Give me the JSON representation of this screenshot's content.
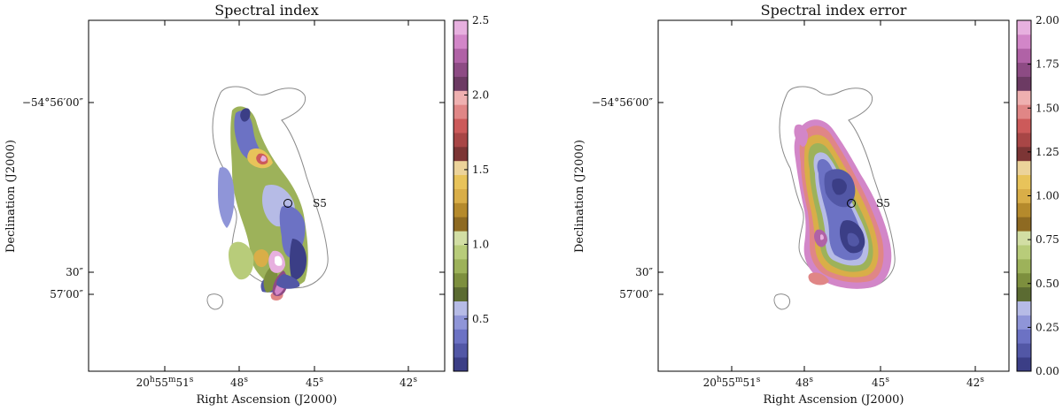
{
  "colors": {
    "levels": [
      "#3b3e86",
      "#5257a6",
      "#6c72c4",
      "#8f95d8",
      "#b6bbe6",
      "#5b6b32",
      "#7d8f3e",
      "#9db25a",
      "#b8cc7a",
      "#d2dea4",
      "#8e6a22",
      "#b58a2c",
      "#d9ae48",
      "#e8c35a",
      "#ecd39a",
      "#7c3535",
      "#a84646",
      "#cc5a5a",
      "#e08686",
      "#efb0b0",
      "#6c3a63",
      "#8d4b84",
      "#b062a6",
      "#d286c8",
      "#e7b0df"
    ],
    "contour": "#8a8a8a",
    "marker": "#000000"
  },
  "chart_data": [
    {
      "type": "heatmap",
      "title": "Spectral index",
      "xlabel": "Right Ascension (J2000)",
      "ylabel": "Declination (J2000)",
      "x_ticks": [
        "20h55m51s",
        "48s",
        "45s",
        "42s"
      ],
      "y_ticks": [
        "−54°56′00″",
        "30″",
        "57′00″"
      ],
      "colorbar": {
        "min": 0.15,
        "max": 2.5,
        "ticks": [
          "0.5",
          "1.0",
          "1.5",
          "2.0",
          "2.5"
        ],
        "tick_values": [
          0.5,
          1.0,
          1.5,
          2.0,
          2.5
        ]
      },
      "annotations": [
        {
          "text": "S5"
        }
      ]
    },
    {
      "type": "heatmap",
      "title": "Spectral index error",
      "xlabel": "Right Ascension (J2000)",
      "ylabel": "Declination (J2000)",
      "x_ticks": [
        "20h55m51s",
        "48s",
        "45s",
        "42s"
      ],
      "y_ticks": [
        "−54°56′00″",
        "30″",
        "57′00″"
      ],
      "colorbar": {
        "min": 0.0,
        "max": 2.0,
        "ticks": [
          "0.00",
          "0.25",
          "0.50",
          "0.75",
          "1.00",
          "1.25",
          "1.50",
          "1.75",
          "2.00"
        ],
        "tick_values": [
          0,
          0.25,
          0.5,
          0.75,
          1.0,
          1.25,
          1.5,
          1.75,
          2.0
        ]
      },
      "annotations": [
        {
          "text": "S5"
        }
      ]
    }
  ]
}
